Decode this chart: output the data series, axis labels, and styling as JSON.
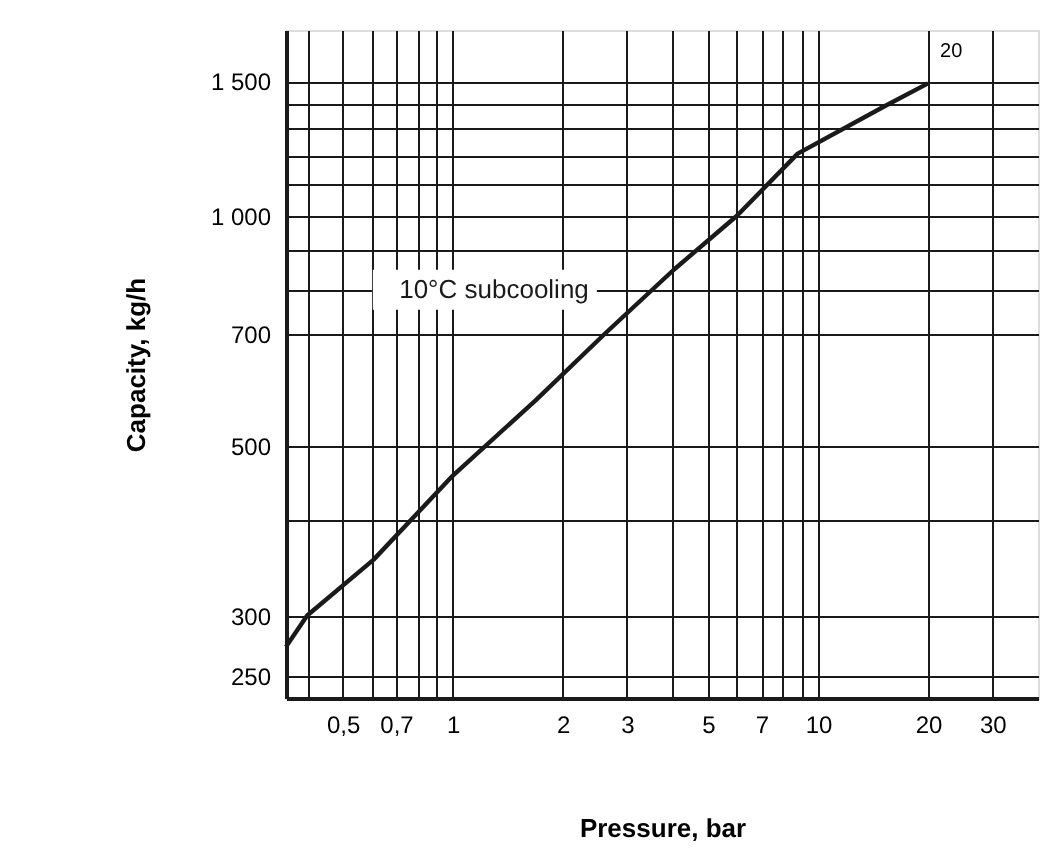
{
  "chart_data": {
    "type": "line",
    "xlabel": "Pressure, bar",
    "ylabel": "Capacity, kg/h",
    "log": "xy",
    "grid": true,
    "marker": "none",
    "line_style": "solid",
    "xlim": [
      0.35,
      40
    ],
    "ylim": [
      234,
      1750
    ],
    "xticks": [
      {
        "value": 0.4,
        "label": null
      },
      {
        "value": 0.5,
        "label": "0,5"
      },
      {
        "value": 0.6,
        "label": null
      },
      {
        "value": 0.7,
        "label": "0,7"
      },
      {
        "value": 0.8,
        "label": null
      },
      {
        "value": 0.9,
        "label": null
      },
      1,
      2,
      3,
      {
        "value": 4,
        "label": null
      },
      5,
      {
        "value": 6,
        "label": null
      },
      7,
      {
        "value": 8,
        "label": null
      },
      {
        "value": 9,
        "label": null
      },
      10,
      20,
      30
    ],
    "yticks": [
      250,
      300,
      {
        "value": 400,
        "label": null
      },
      500,
      700,
      {
        "value": 800,
        "label": null
      },
      {
        "value": 900,
        "label": null
      },
      {
        "value": 1000,
        "label": "1 000"
      },
      {
        "value": 1100,
        "label": null
      },
      {
        "value": 1200,
        "label": null
      },
      {
        "value": 1300,
        "label": null
      },
      {
        "value": 1400,
        "label": null
      },
      {
        "value": 1500,
        "label": "1 500"
      }
    ],
    "annotations": [
      {
        "text": "20",
        "x": 20,
        "y": 1490
      }
    ],
    "series": [
      {
        "name": "10°C subcooling",
        "color": "#1a1a1a",
        "x": [
          0.35,
          0.4,
          0.608,
          1.0,
          1.69,
          2.61,
          4.03,
          6.0,
          8.8,
          15.3,
          20
        ],
        "values": [
          273,
          300,
          355,
          457,
          574,
          701,
          850,
          1000,
          1206,
          1393,
          1490
        ]
      }
    ]
  }
}
